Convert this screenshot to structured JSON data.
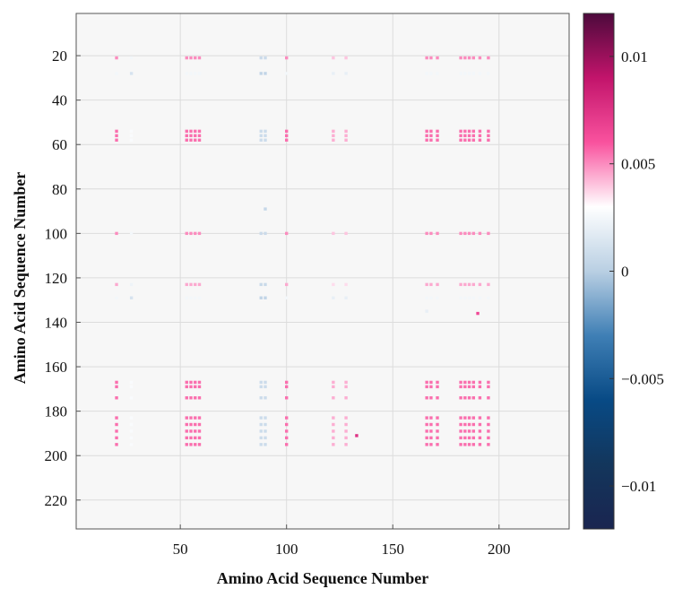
{
  "chart_data": {
    "type": "heatmap",
    "xlabel": "Amino Acid Sequence Number",
    "ylabel": "Amino Acid Sequence Number",
    "xlim": [
      1,
      233
    ],
    "ylim": [
      1,
      233
    ],
    "y_inverted": true,
    "grid": true,
    "x_ticks": [
      50,
      100,
      150,
      200
    ],
    "y_ticks": [
      20,
      40,
      60,
      80,
      100,
      120,
      140,
      160,
      180,
      200,
      220
    ],
    "colorbar": {
      "range": [
        -0.012,
        0.012
      ],
      "ticks": [
        0.01,
        0.005,
        0,
        -0.005,
        -0.01
      ],
      "tick_labels": [
        "0.01",
        "0.005",
        "0",
        "−0.005",
        "−0.01"
      ],
      "colors_high_to_low": [
        "#4d0a3c",
        "#c2146b",
        "#f9529e",
        "#ffffff",
        "#b9cfe3",
        "#3f7fb5",
        "#084a85",
        "#13365c",
        "#1a2550"
      ]
    },
    "background_color": "#f7f7f7",
    "row_groups": [
      {
        "rows": [
          21
        ],
        "value": 0.005
      },
      {
        "rows": [
          28
        ],
        "value": 0.0025
      },
      {
        "rows": [
          54,
          56,
          58
        ],
        "value": 0.0055
      },
      {
        "rows": [
          100
        ],
        "value": 0.005
      },
      {
        "rows": [
          123
        ],
        "value": 0.0045
      },
      {
        "rows": [
          129
        ],
        "value": 0.0025
      },
      {
        "rows": [
          167,
          169,
          174
        ],
        "value": 0.0055
      },
      {
        "rows": [
          183,
          186,
          189,
          192,
          195
        ],
        "value": 0.0055
      }
    ],
    "column_groups": [
      {
        "cols": [
          20
        ],
        "weight": 1.0
      },
      {
        "cols": [
          27
        ],
        "weight": 0.5
      },
      {
        "cols": [
          53,
          55,
          57,
          59
        ],
        "weight": 1.0
      },
      {
        "cols": [
          88,
          90
        ],
        "weight": 0.15
      },
      {
        "cols": [
          100
        ],
        "weight": 1.0
      },
      {
        "cols": [
          122,
          128
        ],
        "weight": 0.8
      },
      {
        "cols": [
          166,
          168,
          171
        ],
        "weight": 1.0
      },
      {
        "cols": [
          182,
          184,
          186,
          188,
          191,
          195
        ],
        "weight": 1.0
      }
    ],
    "extra_cells": [
      {
        "x": 133,
        "y": 191,
        "value": 0.0075
      },
      {
        "x": 190,
        "y": 136,
        "value": 0.0065
      },
      {
        "x": 90,
        "y": 89,
        "value": 0.0005
      },
      {
        "x": 166,
        "y": 135,
        "value": 0.002
      }
    ]
  }
}
